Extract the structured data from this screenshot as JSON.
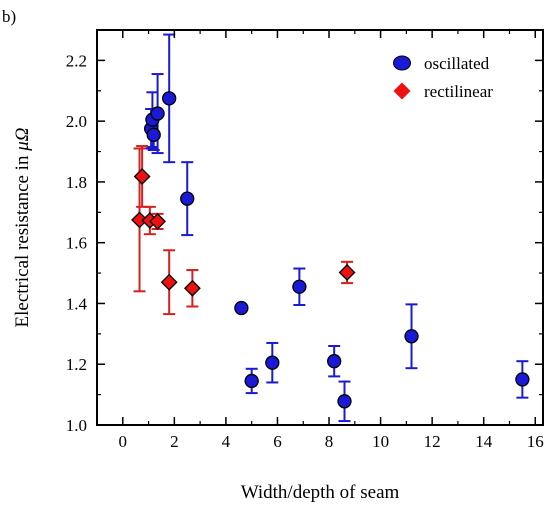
{
  "chart_data": {
    "type": "scatter",
    "panel_label": "b)",
    "title": "",
    "xlabel": "Width/depth of seam",
    "ylabel_prefix": "Electrical resistance in ",
    "ylabel_unit": "μΩ",
    "xlim": [
      -1,
      16.3
    ],
    "ylim": [
      1.0,
      2.3
    ],
    "xticks": [
      0,
      2,
      4,
      6,
      8,
      10,
      12,
      14,
      16
    ],
    "yticks": [
      1.0,
      1.2,
      1.4,
      1.6,
      1.8,
      2.0,
      2.2
    ],
    "ytick_labels": [
      "1.0",
      "1.2",
      "1.4",
      "1.6",
      "1.8",
      "2.0",
      "2.2"
    ],
    "grid": false,
    "legend_position": "top-right",
    "series": [
      {
        "name": "oscillated",
        "marker": "circle",
        "color": "#1a1ad6",
        "errorbar_color": "#1a1ad6",
        "points": [
          {
            "x": 1.1,
            "y": 1.975,
            "err": 0.065
          },
          {
            "x": 1.15,
            "y": 2.005,
            "err": 0.09
          },
          {
            "x": 1.2,
            "y": 1.955,
            "err": 0.05
          },
          {
            "x": 1.35,
            "y": 2.025,
            "err": 0.13
          },
          {
            "x": 1.8,
            "y": 2.075,
            "err": 0.21
          },
          {
            "x": 2.5,
            "y": 1.745,
            "err": 0.12
          },
          {
            "x": 4.6,
            "y": 1.385,
            "err": 0.0
          },
          {
            "x": 5.0,
            "y": 1.145,
            "err": 0.04
          },
          {
            "x": 5.8,
            "y": 1.205,
            "err": 0.065
          },
          {
            "x": 6.85,
            "y": 1.455,
            "err": 0.06
          },
          {
            "x": 8.2,
            "y": 1.21,
            "err": 0.05
          },
          {
            "x": 8.6,
            "y": 1.078,
            "err": 0.065
          },
          {
            "x": 11.2,
            "y": 1.292,
            "err": 0.105
          },
          {
            "x": 15.5,
            "y": 1.15,
            "err": 0.06
          }
        ]
      },
      {
        "name": "rectilinear",
        "marker": "diamond",
        "color": "#ee1111",
        "errorbar_color": "#d42020",
        "points": [
          {
            "x": 0.65,
            "y": 1.675,
            "err": 0.235
          },
          {
            "x": 0.75,
            "y": 1.818,
            "err": 0.1
          },
          {
            "x": 1.05,
            "y": 1.673,
            "err": 0.045
          },
          {
            "x": 1.35,
            "y": 1.67,
            "err": 0.025
          },
          {
            "x": 1.8,
            "y": 1.47,
            "err": 0.105
          },
          {
            "x": 2.7,
            "y": 1.45,
            "err": 0.06
          },
          {
            "x": 8.7,
            "y": 1.502,
            "err": 0.035
          }
        ]
      }
    ]
  }
}
